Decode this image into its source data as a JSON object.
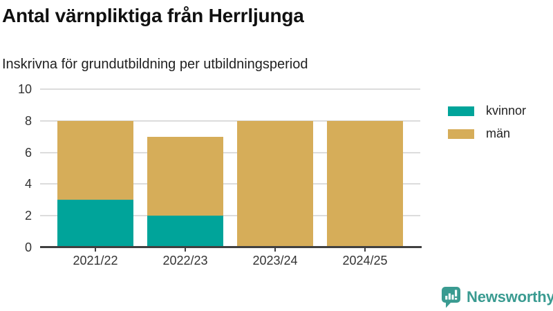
{
  "header": {
    "title": "Antal värnpliktiga från Herrljunga",
    "subtitle": "Inskrivna för grundutbildning per utbildningsperiod"
  },
  "chart_data": {
    "type": "bar",
    "stacked": true,
    "title": "Antal värnpliktiga från Herrljunga",
    "subtitle": "Inskrivna för grundutbildning per utbildningsperiod",
    "categories": [
      "2021/22",
      "2022/23",
      "2023/24",
      "2024/25"
    ],
    "series": [
      {
        "name": "kvinnor",
        "color": "#00a49a",
        "values": [
          3,
          2,
          0,
          0
        ]
      },
      {
        "name": "män",
        "color": "#d6ad59",
        "values": [
          5,
          5,
          8,
          8
        ]
      }
    ],
    "totals": [
      8,
      7,
      8,
      8
    ],
    "xlabel": "",
    "ylabel": "",
    "ylim": [
      0,
      10
    ],
    "yticks": [
      0,
      2,
      4,
      6,
      8,
      10
    ],
    "grid": true,
    "legend_position": "right"
  },
  "style": {
    "grid_color": "#dcdcdc",
    "axis_color": "#404040",
    "tick_text_color": "#333333"
  },
  "branding": {
    "logo_text": "Newsworthy",
    "logo_color": "#3a9b91",
    "logo_icon": "bar-chart-speech-bubble-icon"
  }
}
